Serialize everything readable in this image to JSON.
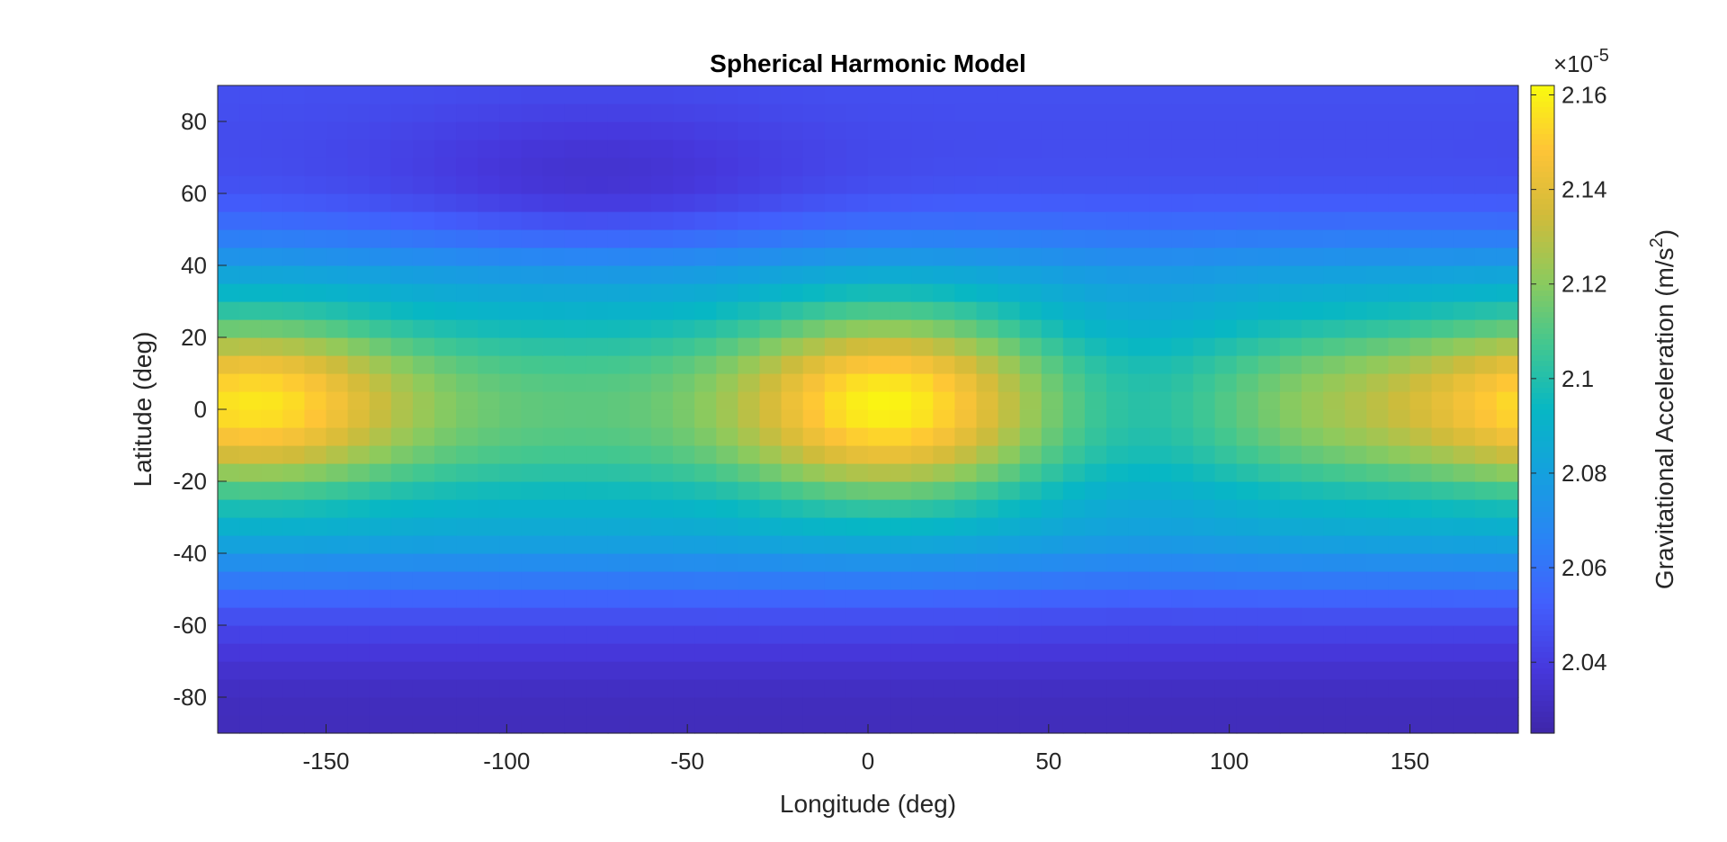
{
  "chart_data": {
    "type": "heatmap",
    "title": "Spherical Harmonic Model",
    "xlabel": "Longitude (deg)",
    "ylabel": "Latitude (deg)",
    "xlim": [
      -180,
      180
    ],
    "ylim": [
      -90,
      90
    ],
    "xticks": [
      -150,
      -100,
      -50,
      0,
      50,
      100,
      150
    ],
    "yticks": [
      80,
      60,
      40,
      20,
      0,
      -20,
      -40,
      -60,
      -80
    ],
    "grid": false,
    "colorbar": {
      "label_main": "Gravitational Acceleration (m/s",
      "label_sup": "2",
      "label_end": ")",
      "exponent_prefix": "×10",
      "exponent_power": "-5",
      "ticks": [
        "2.16",
        "2.14",
        "2.12",
        "2.1",
        "2.08",
        "2.06",
        "2.04"
      ],
      "tick_values": [
        2.16,
        2.14,
        2.12,
        2.1,
        2.08,
        2.06,
        2.04
      ],
      "clim": [
        2.025,
        2.162
      ],
      "colormap": "parula"
    },
    "field": {
      "grid_lon_step_deg": 6,
      "grid_lat_step_deg": 5,
      "base_level": 2.092,
      "features": [
        {
          "type": "zonal",
          "description": "latitude profile",
          "lat": [
            -90,
            -85,
            -80,
            -75,
            -70,
            -65,
            -60,
            -55,
            -50,
            -45,
            -40,
            -35,
            -30,
            -25,
            -20,
            -15,
            -10,
            -5,
            0,
            5,
            10,
            15,
            20,
            25,
            30,
            35,
            40,
            45,
            50,
            55,
            60,
            65,
            70,
            75,
            80,
            85,
            90
          ],
          "value": [
            2.03,
            2.03,
            2.031,
            2.033,
            2.036,
            2.04,
            2.044,
            2.05,
            2.058,
            2.066,
            2.075,
            2.083,
            2.088,
            2.092,
            2.098,
            2.104,
            2.108,
            2.11,
            2.111,
            2.11,
            2.108,
            2.104,
            2.098,
            2.093,
            2.088,
            2.083,
            2.076,
            2.068,
            2.06,
            2.054,
            2.049,
            2.047,
            2.046,
            2.046,
            2.046,
            2.047,
            2.047
          ]
        },
        {
          "type": "bump",
          "lon": 5,
          "lat": 2,
          "amplitude": 0.05,
          "lon_width": 28,
          "lat_width": 18
        },
        {
          "type": "bump",
          "lon": -165,
          "lat": 2,
          "amplitude": 0.03,
          "lon_width": 25,
          "lat_width": 16
        },
        {
          "type": "bump",
          "lon": 165,
          "lat": 2,
          "amplitude": 0.02,
          "lon_width": 45,
          "lat_width": 15
        },
        {
          "type": "bump",
          "lon": 75,
          "lat": 0,
          "amplitude": -0.014,
          "lon_width": 22,
          "lat_width": 22
        },
        {
          "type": "bump",
          "lon": -75,
          "lat": 62,
          "amplitude": -0.012,
          "lon_width": 40,
          "lat_width": 15
        }
      ]
    }
  }
}
